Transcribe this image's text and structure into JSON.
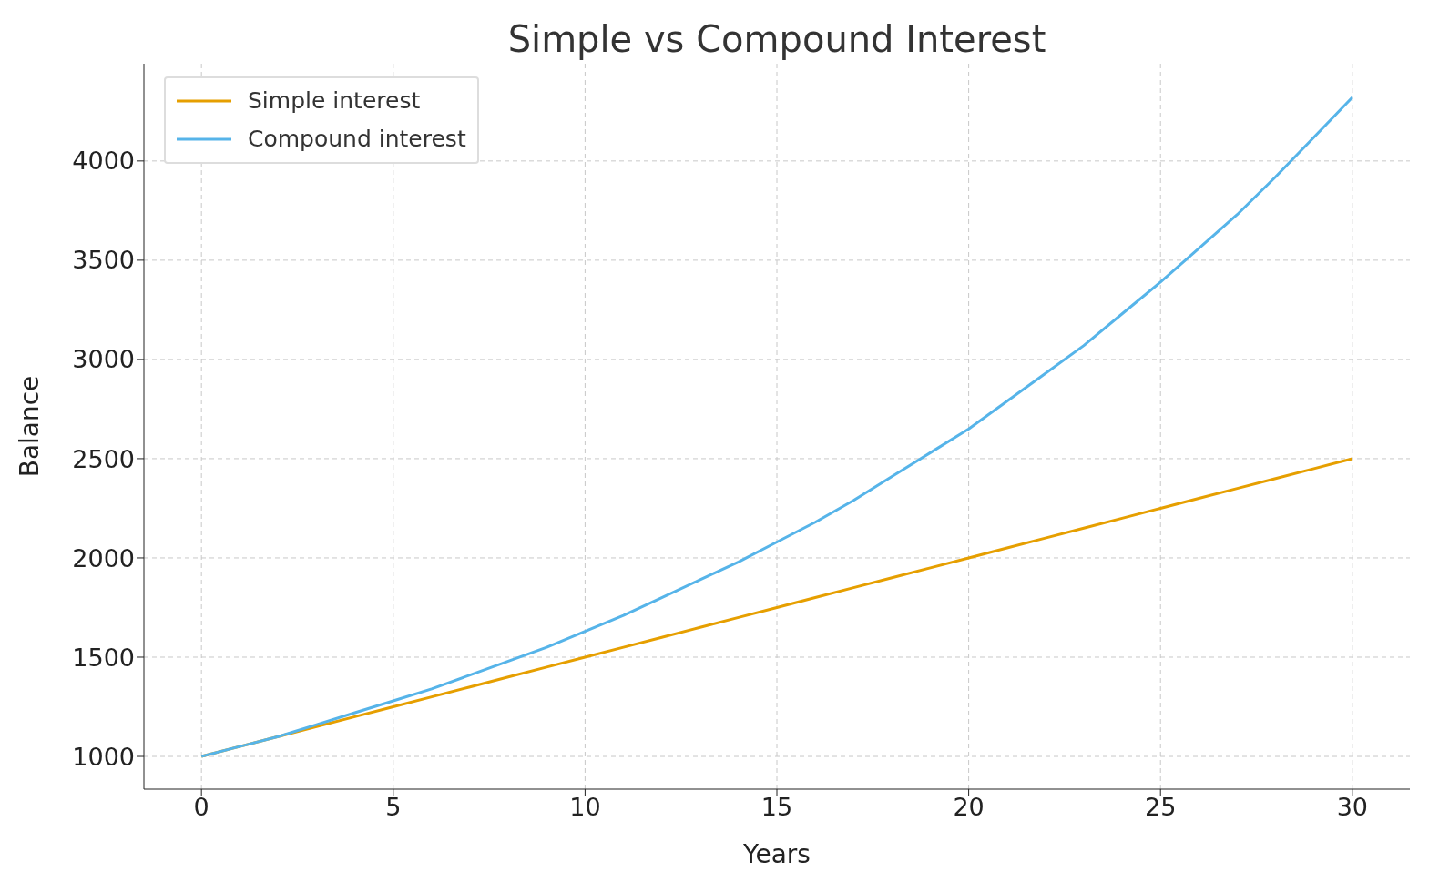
{
  "chart_data": {
    "type": "line",
    "title": "Simple vs Compound Interest",
    "xlabel": "Years",
    "ylabel": "Balance",
    "x": [
      0,
      1,
      2,
      3,
      4,
      5,
      6,
      7,
      8,
      9,
      10,
      11,
      12,
      13,
      14,
      15,
      16,
      17,
      18,
      19,
      20,
      21,
      22,
      23,
      24,
      25,
      26,
      27,
      28,
      29,
      30
    ],
    "series": [
      {
        "name": "Simple interest",
        "color": "#e69f00",
        "values": [
          1000,
          1050,
          1100,
          1150,
          1200,
          1250,
          1300,
          1350,
          1400,
          1450,
          1500,
          1550,
          1600,
          1650,
          1700,
          1750,
          1800,
          1850,
          1900,
          1950,
          2000,
          2050,
          2100,
          2150,
          2200,
          2250,
          2300,
          2350,
          2400,
          2450,
          2500
        ]
      },
      {
        "name": "Compound interest",
        "color": "#56b4e9",
        "values": [
          1000,
          1050,
          1100,
          1160,
          1220,
          1280,
          1340,
          1410,
          1480,
          1550,
          1630,
          1710,
          1800,
          1890,
          1980,
          2080,
          2180,
          2290,
          2410,
          2530,
          2650,
          2790,
          2930,
          3070,
          3230,
          3390,
          3560,
          3730,
          3920,
          4120,
          4320
        ]
      }
    ],
    "xlim": [
      -1.5,
      31.5
    ],
    "xticks": [
      0,
      5,
      10,
      15,
      20,
      25,
      30
    ],
    "ylim": [
      835,
      4490
    ],
    "yticks": [
      1000,
      1500,
      2000,
      2500,
      3000,
      3500,
      4000
    ],
    "grid": true,
    "legend": "top left",
    "marker": "none",
    "line_style": "solid"
  }
}
